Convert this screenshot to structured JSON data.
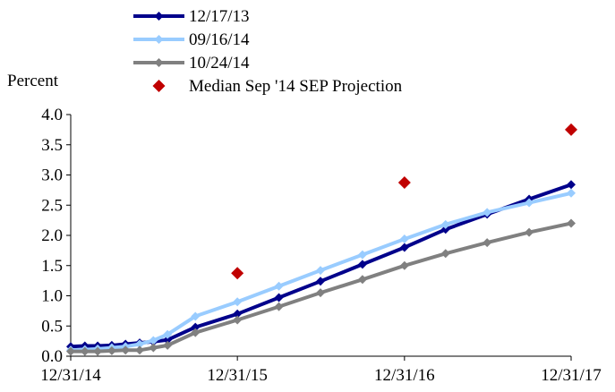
{
  "chart_data": {
    "type": "line",
    "ylabel": "Percent",
    "ylim": [
      0,
      4
    ],
    "yticks": [
      "0.0",
      "0.5",
      "1.0",
      "1.5",
      "2.0",
      "2.5",
      "3.0",
      "3.5",
      "4.0"
    ],
    "xlim": [
      "2014-12-31",
      "2017-12-31"
    ],
    "xticks": [
      {
        "date": "2014-12-31",
        "label": "12/31/14"
      },
      {
        "date": "2015-12-31",
        "label": "12/31/15"
      },
      {
        "date": "2016-12-31",
        "label": "12/31/16"
      },
      {
        "date": "2017-12-31",
        "label": "12/31/17"
      }
    ],
    "legend_position": "top-left",
    "series": [
      {
        "name": "12/17/13",
        "color": "#00008b",
        "marker": "diamond",
        "points": [
          [
            "2014-12-31",
            0.16
          ],
          [
            "2015-01-31",
            0.17
          ],
          [
            "2015-02-28",
            0.17
          ],
          [
            "2015-03-31",
            0.18
          ],
          [
            "2015-04-30",
            0.2
          ],
          [
            "2015-05-31",
            0.22
          ],
          [
            "2015-06-30",
            0.24
          ],
          [
            "2015-07-31",
            0.27
          ],
          [
            "2015-09-30",
            0.48
          ],
          [
            "2015-12-31",
            0.7
          ],
          [
            "2016-03-31",
            0.97
          ],
          [
            "2016-06-30",
            1.24
          ],
          [
            "2016-09-30",
            1.52
          ],
          [
            "2016-12-31",
            1.8
          ],
          [
            "2017-03-31",
            2.1
          ],
          [
            "2017-06-30",
            2.35
          ],
          [
            "2017-09-30",
            2.6
          ],
          [
            "2017-12-31",
            2.84
          ]
        ]
      },
      {
        "name": "09/16/14",
        "color": "#99ccff",
        "marker": "diamond",
        "points": [
          [
            "2014-12-31",
            0.1
          ],
          [
            "2015-01-31",
            0.11
          ],
          [
            "2015-02-28",
            0.12
          ],
          [
            "2015-03-31",
            0.14
          ],
          [
            "2015-04-30",
            0.16
          ],
          [
            "2015-05-31",
            0.2
          ],
          [
            "2015-06-30",
            0.26
          ],
          [
            "2015-07-31",
            0.36
          ],
          [
            "2015-09-30",
            0.66
          ],
          [
            "2015-12-31",
            0.9
          ],
          [
            "2016-03-31",
            1.16
          ],
          [
            "2016-06-30",
            1.42
          ],
          [
            "2016-09-30",
            1.68
          ],
          [
            "2016-12-31",
            1.94
          ],
          [
            "2017-03-31",
            2.18
          ],
          [
            "2017-06-30",
            2.38
          ],
          [
            "2017-09-30",
            2.54
          ],
          [
            "2017-12-31",
            2.7
          ]
        ]
      },
      {
        "name": "10/24/14",
        "color": "#808080",
        "marker": "diamond",
        "points": [
          [
            "2014-12-31",
            0.08
          ],
          [
            "2015-01-31",
            0.08
          ],
          [
            "2015-02-28",
            0.08
          ],
          [
            "2015-03-31",
            0.09
          ],
          [
            "2015-04-30",
            0.1
          ],
          [
            "2015-05-31",
            0.1
          ],
          [
            "2015-06-30",
            0.14
          ],
          [
            "2015-07-31",
            0.18
          ],
          [
            "2015-09-30",
            0.39
          ],
          [
            "2015-12-31",
            0.6
          ],
          [
            "2016-03-31",
            0.82
          ],
          [
            "2016-06-30",
            1.05
          ],
          [
            "2016-09-30",
            1.27
          ],
          [
            "2016-12-31",
            1.5
          ],
          [
            "2017-03-31",
            1.7
          ],
          [
            "2017-06-30",
            1.88
          ],
          [
            "2017-09-30",
            2.05
          ],
          [
            "2017-12-31",
            2.2
          ]
        ]
      }
    ],
    "projection": {
      "name": "Median Sep '14 SEP Projection",
      "color": "#c00000",
      "marker": "diamond",
      "points": [
        [
          "2015-12-31",
          1.375
        ],
        [
          "2016-12-31",
          2.875
        ],
        [
          "2017-12-31",
          3.75
        ]
      ]
    }
  }
}
